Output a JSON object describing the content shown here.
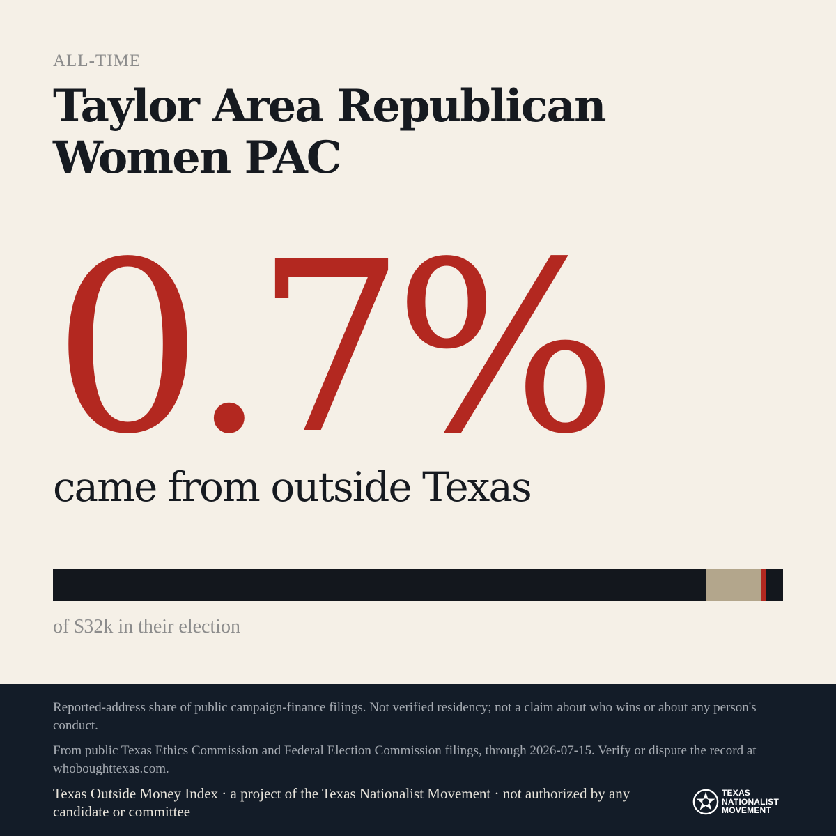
{
  "eyebrow": "ALL-TIME",
  "title": "Taylor Area Republican Women PAC",
  "headline": {
    "percent_text": "0.7%",
    "subline": "came from outside Texas"
  },
  "bar": {
    "inside_share": 0.894,
    "mid_share": 0.075,
    "outside_share": 0.007,
    "colors": {
      "inside": "#13171d",
      "mid": "#b3a68c",
      "outside": "#b32820"
    }
  },
  "caption": "of $32k in their election",
  "footer": {
    "disclaimer": "Reported-address share of public campaign-finance filings. Not verified residency; not a claim about who wins or about any person's conduct.",
    "source": "From public Texas Ethics Commission and Federal Election Commission filings, through 2026-07-15. Verify or dispute the record at whoboughttexas.com.",
    "credit": "Texas Outside Money Index · a project of the Texas Nationalist Movement · not authorized by any candidate or committee",
    "logo": {
      "icon": "star-seal-icon",
      "line1": "TEXAS",
      "line2": "NATIONALIST",
      "line3": "MOVEMENT"
    }
  },
  "colors": {
    "background": "#f5f0e7",
    "accent": "#b32820",
    "footer_bg": "#131c28"
  }
}
